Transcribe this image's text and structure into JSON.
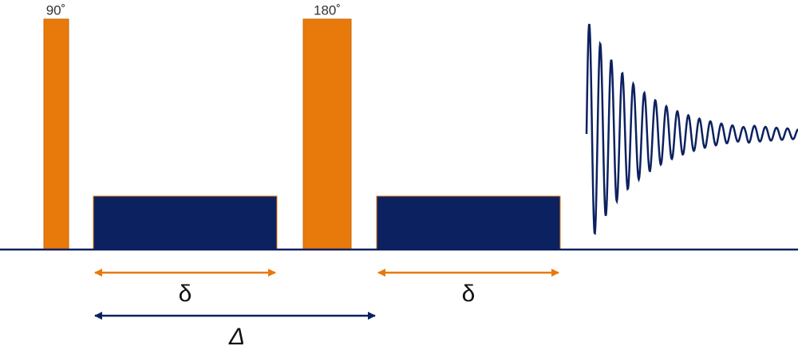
{
  "pulses": [
    {
      "label": "90˚"
    },
    {
      "label": "180˚"
    }
  ],
  "gradient_delays": [
    {
      "label": "δ"
    },
    {
      "label": "δ"
    }
  ],
  "diffusion_time": {
    "label": "Δ"
  }
}
